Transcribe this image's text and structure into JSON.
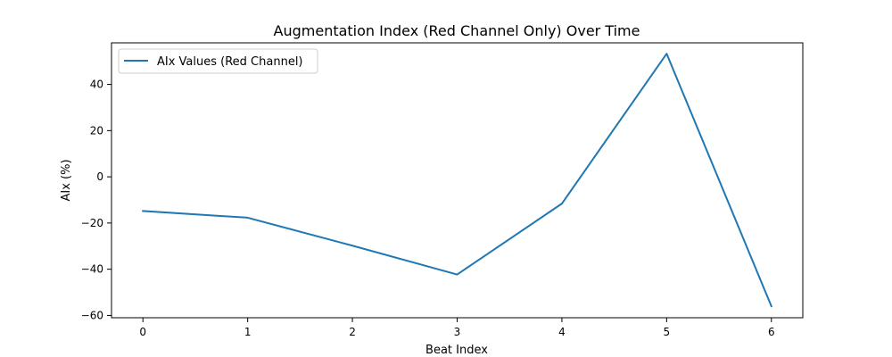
{
  "chart_data": {
    "type": "line",
    "title": "Augmentation Index (Red Channel Only) Over Time",
    "xlabel": "Beat Index",
    "ylabel": "AIx (%)",
    "x": [
      0,
      1,
      2,
      3,
      4,
      5,
      6
    ],
    "series": [
      {
        "name": "AIx Values (Red Channel)",
        "color": "#1f77b4",
        "values": [
          -14.8,
          -17.7,
          -29.8,
          -42.3,
          -11.6,
          53.3,
          -56.0
        ]
      }
    ],
    "xlim": [
      -0.3,
      6.3
    ],
    "ylim": [
      -61.0,
      58.0
    ],
    "xticks": [
      0,
      1,
      2,
      3,
      4,
      5,
      6
    ],
    "yticks": [
      -60,
      -40,
      -20,
      0,
      20,
      40
    ],
    "grid": false,
    "legend_position": "top-left"
  }
}
